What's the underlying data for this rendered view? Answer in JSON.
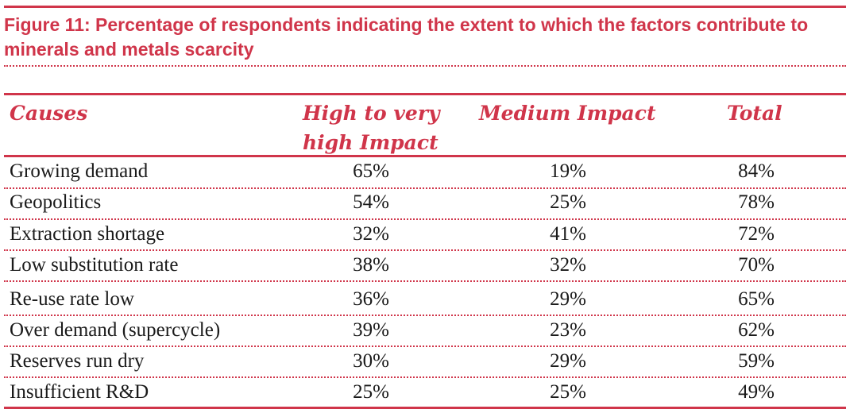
{
  "figure": {
    "title": "Figure 11: Percentage of respondents indicating the extent to which the factors contribute to minerals and metals scarcity"
  },
  "table": {
    "headers": {
      "causes": "Causes",
      "high": "High to very high Impact",
      "medium": "Medium Impact",
      "total": "Total"
    },
    "rows": [
      {
        "cause": "Growing demand",
        "high": "65%",
        "medium": "19%",
        "total": "84%"
      },
      {
        "cause": "Geopolitics",
        "high": "54%",
        "medium": "25%",
        "total": "78%"
      },
      {
        "cause": "Extraction shortage",
        "high": "32%",
        "medium": "41%",
        "total": "72%"
      },
      {
        "cause": "Low substitution rate",
        "high": "38%",
        "medium": "32%",
        "total": "70%"
      },
      {
        "cause": "Re-use rate low",
        "high": "36%",
        "medium": "29%",
        "total": "65%"
      },
      {
        "cause": "Over demand (supercycle)",
        "high": "39%",
        "medium": "23%",
        "total": "62%"
      },
      {
        "cause": "Reserves run dry",
        "high": "30%",
        "medium": "29%",
        "total": "59%"
      },
      {
        "cause": "Insufficient R&D",
        "high": "25%",
        "medium": "25%",
        "total": "49%"
      }
    ]
  },
  "colors": {
    "accent": "#d0354a",
    "text": "#1a1a1a"
  }
}
